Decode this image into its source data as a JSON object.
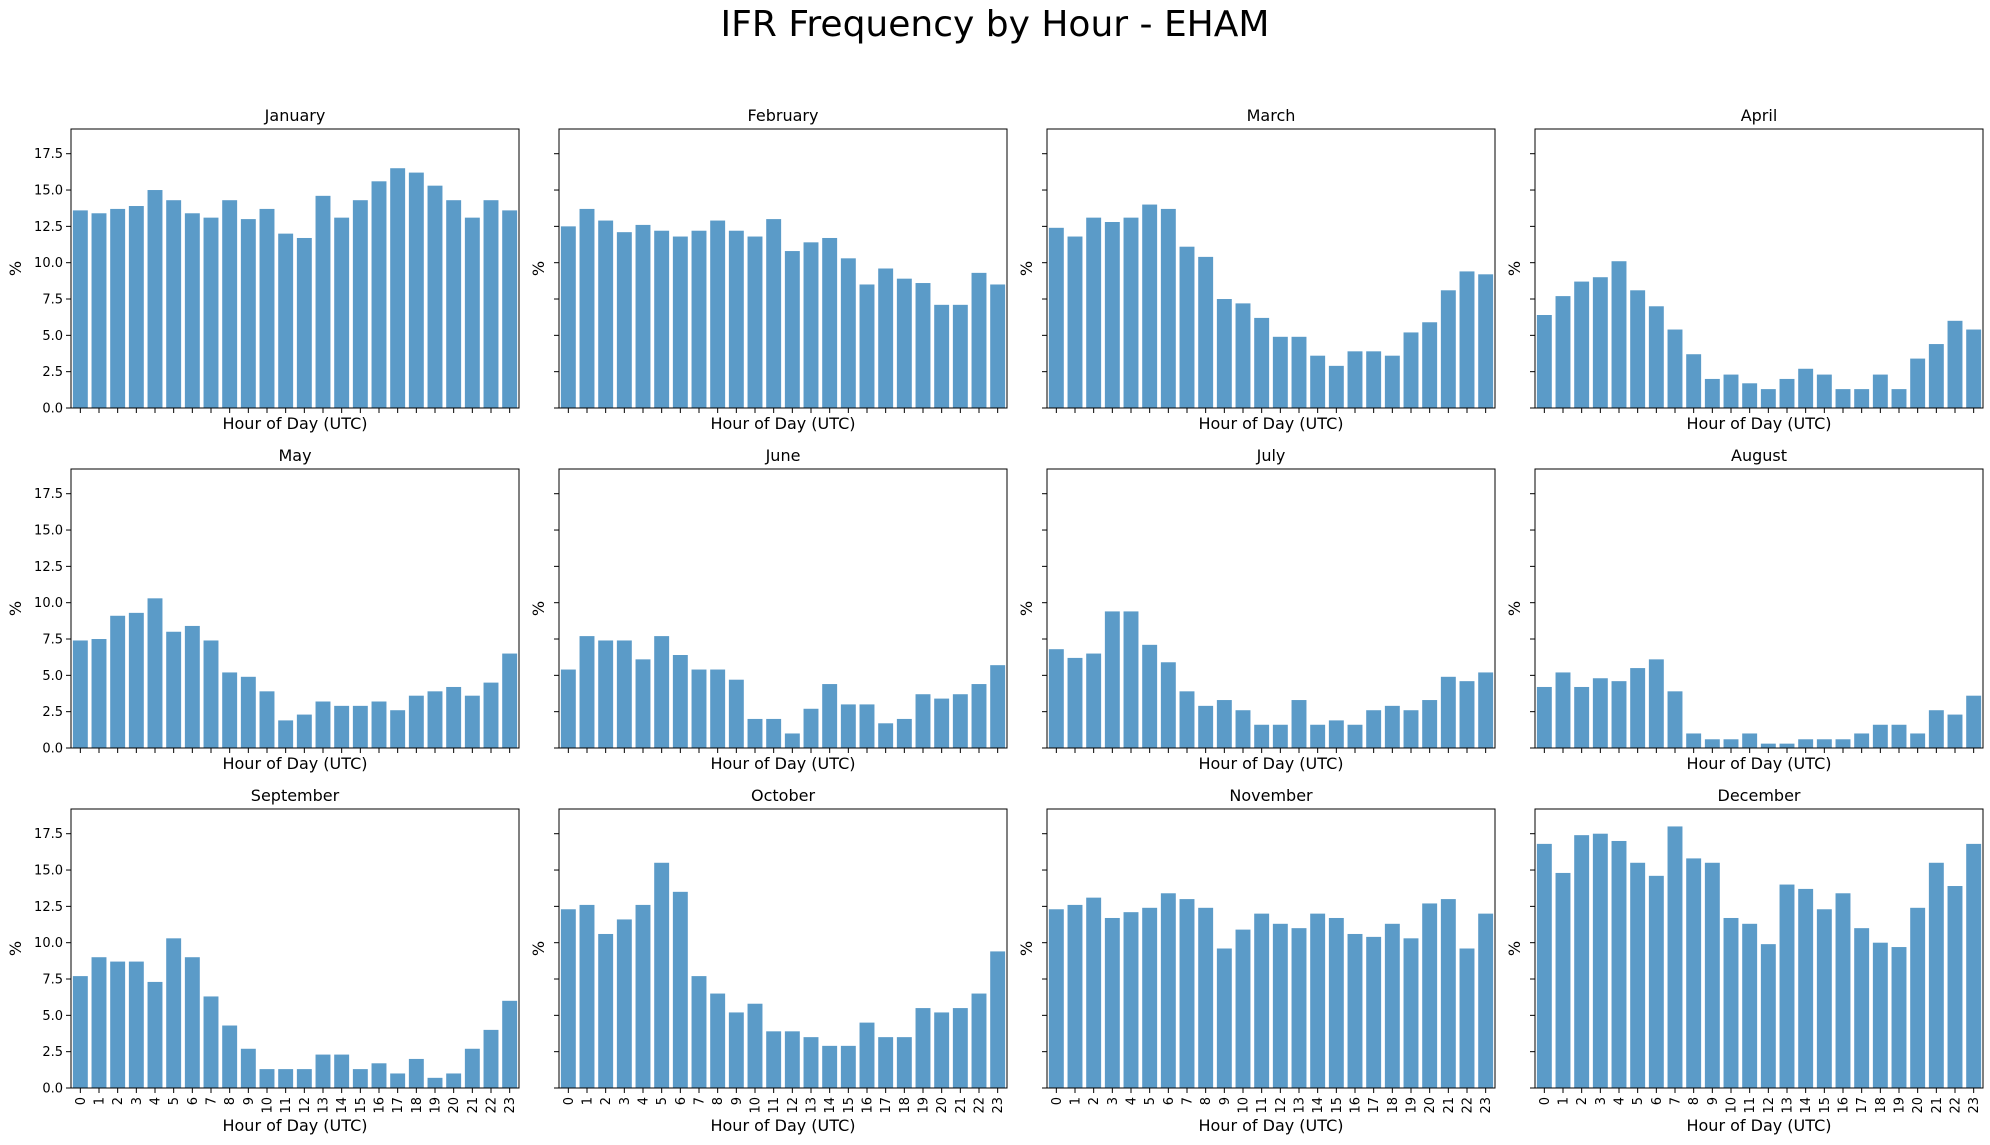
{
  "figure": {
    "title": "IFR Frequency by Hour - EHAM",
    "bar_color": "#5b9bc8",
    "frame_color": "#000000"
  },
  "chart_data": {
    "type": "bar",
    "grid": false,
    "xlabel": "Hour of Day (UTC)",
    "ylabel": "%",
    "ylim": [
      0,
      19.2
    ],
    "yticks": [
      "0.0",
      "2.5",
      "5.0",
      "7.5",
      "10.0",
      "12.5",
      "15.0",
      "17.5"
    ],
    "ytick_values": [
      0,
      2.5,
      5,
      7.5,
      10,
      12.5,
      15,
      17.5
    ],
    "categories": [
      "0",
      "1",
      "2",
      "3",
      "4",
      "5",
      "6",
      "7",
      "8",
      "9",
      "10",
      "11",
      "12",
      "13",
      "14",
      "15",
      "16",
      "17",
      "18",
      "19",
      "20",
      "21",
      "22",
      "23"
    ],
    "panels": [
      {
        "title": "January",
        "values": [
          13.6,
          13.4,
          13.7,
          13.9,
          15.0,
          14.3,
          13.4,
          13.1,
          14.3,
          13.0,
          13.7,
          12.0,
          11.7,
          14.6,
          13.1,
          14.3,
          15.6,
          16.5,
          16.2,
          15.3,
          14.3,
          13.1,
          14.3,
          13.6
        ]
      },
      {
        "title": "February",
        "values": [
          12.5,
          13.7,
          12.9,
          12.1,
          12.6,
          12.2,
          11.8,
          12.2,
          12.9,
          12.2,
          11.8,
          13.0,
          10.8,
          11.4,
          11.7,
          10.3,
          8.5,
          9.6,
          8.9,
          8.6,
          7.1,
          7.1,
          9.3,
          8.5
        ]
      },
      {
        "title": "March",
        "values": [
          12.4,
          11.8,
          13.1,
          12.8,
          13.1,
          14.0,
          13.7,
          11.1,
          10.4,
          7.5,
          7.2,
          6.2,
          4.9,
          4.9,
          3.6,
          2.9,
          3.9,
          3.9,
          3.6,
          5.2,
          5.9,
          8.1,
          9.4,
          9.2
        ]
      },
      {
        "title": "April",
        "values": [
          6.4,
          7.7,
          8.7,
          9.0,
          10.1,
          8.1,
          7.0,
          5.4,
          3.7,
          2.0,
          2.3,
          1.7,
          1.3,
          2.0,
          2.7,
          2.3,
          1.3,
          1.3,
          2.3,
          1.3,
          3.4,
          4.4,
          6.0,
          5.4
        ]
      },
      {
        "title": "May",
        "values": [
          7.4,
          7.5,
          9.1,
          9.3,
          10.3,
          8.0,
          8.4,
          7.4,
          5.2,
          4.9,
          3.9,
          1.9,
          2.3,
          3.2,
          2.9,
          2.9,
          3.2,
          2.6,
          3.6,
          3.9,
          4.2,
          3.6,
          4.5,
          6.5
        ]
      },
      {
        "title": "June",
        "values": [
          5.4,
          7.7,
          7.4,
          7.4,
          6.1,
          7.7,
          6.4,
          5.4,
          5.4,
          4.7,
          2.0,
          2.0,
          1.0,
          2.7,
          4.4,
          3.0,
          3.0,
          1.7,
          2.0,
          3.7,
          3.4,
          3.7,
          4.4,
          5.7
        ]
      },
      {
        "title": "July",
        "values": [
          6.8,
          6.2,
          6.5,
          9.4,
          9.4,
          7.1,
          5.9,
          3.9,
          2.9,
          3.3,
          2.6,
          1.6,
          1.6,
          3.3,
          1.6,
          1.9,
          1.6,
          2.6,
          2.9,
          2.6,
          3.3,
          4.9,
          4.6,
          5.2
        ]
      },
      {
        "title": "August",
        "values": [
          4.2,
          5.2,
          4.2,
          4.8,
          4.6,
          5.5,
          6.1,
          3.9,
          1.0,
          0.6,
          0.6,
          1.0,
          0.3,
          0.3,
          0.6,
          0.6,
          0.6,
          1.0,
          1.6,
          1.6,
          1.0,
          2.6,
          2.3,
          3.6
        ]
      },
      {
        "title": "September",
        "values": [
          7.7,
          9.0,
          8.7,
          8.7,
          7.3,
          10.3,
          9.0,
          6.3,
          4.3,
          2.7,
          1.3,
          1.3,
          1.3,
          2.3,
          2.3,
          1.3,
          1.7,
          1.0,
          2.0,
          0.7,
          1.0,
          2.7,
          4.0,
          6.0
        ]
      },
      {
        "title": "October",
        "values": [
          12.3,
          12.6,
          10.6,
          11.6,
          12.6,
          15.5,
          13.5,
          7.7,
          6.5,
          5.2,
          5.8,
          3.9,
          3.9,
          3.5,
          2.9,
          2.9,
          4.5,
          3.5,
          3.5,
          5.5,
          5.2,
          5.5,
          6.5,
          9.4
        ]
      },
      {
        "title": "November",
        "values": [
          12.3,
          12.6,
          13.1,
          11.7,
          12.1,
          12.4,
          13.4,
          13.0,
          12.4,
          9.6,
          10.9,
          12.0,
          11.3,
          11.0,
          12.0,
          11.7,
          10.6,
          10.4,
          11.3,
          10.3,
          12.7,
          13.0,
          9.6,
          12.0
        ]
      },
      {
        "title": "December",
        "values": [
          16.8,
          14.8,
          17.4,
          17.5,
          17.0,
          15.5,
          14.6,
          18.0,
          15.8,
          15.5,
          11.7,
          11.3,
          9.9,
          14.0,
          13.7,
          12.3,
          13.4,
          11.0,
          10.0,
          9.7,
          12.4,
          15.5,
          13.9,
          16.8
        ]
      }
    ]
  }
}
